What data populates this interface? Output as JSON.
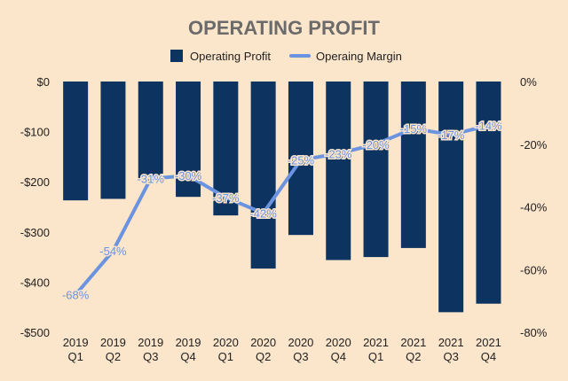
{
  "chart_data": {
    "type": "bar+line",
    "title": "OPERATING PROFIT",
    "categories": [
      [
        "2019",
        "Q1"
      ],
      [
        "2019",
        "Q2"
      ],
      [
        "2019",
        "Q3"
      ],
      [
        "2019",
        "Q4"
      ],
      [
        "2020",
        "Q1"
      ],
      [
        "2020",
        "Q2"
      ],
      [
        "2020",
        "Q3"
      ],
      [
        "2020",
        "Q4"
      ],
      [
        "2021",
        "Q1"
      ],
      [
        "2021",
        "Q2"
      ],
      [
        "2021",
        "Q3"
      ],
      [
        "2021",
        "Q4"
      ]
    ],
    "series": [
      {
        "name": "Operating Profit",
        "type": "bar",
        "axis": "left",
        "color": "#0d3461",
        "values": [
          -237,
          -234,
          -197,
          -230,
          -267,
          -373,
          -306,
          -356,
          -350,
          -332,
          -460,
          -443
        ]
      },
      {
        "name": "Operaing Margin",
        "type": "line",
        "axis": "right",
        "color": "#6b93df",
        "values": [
          -68,
          -54,
          -31,
          -30,
          -37,
          -42,
          -25,
          -23,
          -20,
          -15,
          -17,
          -14
        ],
        "labels": [
          "-68%",
          "-54%",
          "-31%",
          "-30%",
          "-37%",
          "-42%",
          "-25%",
          "-23%",
          "-20%",
          "-15%",
          "-17%",
          "-14%"
        ]
      }
    ],
    "y_left": {
      "ylim": [
        -500,
        0
      ],
      "ticks": [
        0,
        -100,
        -200,
        -300,
        -400,
        -500
      ],
      "tick_labels": [
        "$0",
        "-$100",
        "-$200",
        "-$300",
        "-$400",
        "-$500"
      ]
    },
    "y_right": {
      "ylim": [
        -80,
        0
      ],
      "ticks": [
        0,
        -20,
        -40,
        -60,
        -80
      ],
      "tick_labels": [
        "0%",
        "-20%",
        "-40%",
        "-60%",
        "-80%"
      ]
    },
    "legend": {
      "position": "top-center",
      "items": [
        "Operating Profit",
        "Operaing Margin"
      ]
    },
    "grid": false
  }
}
